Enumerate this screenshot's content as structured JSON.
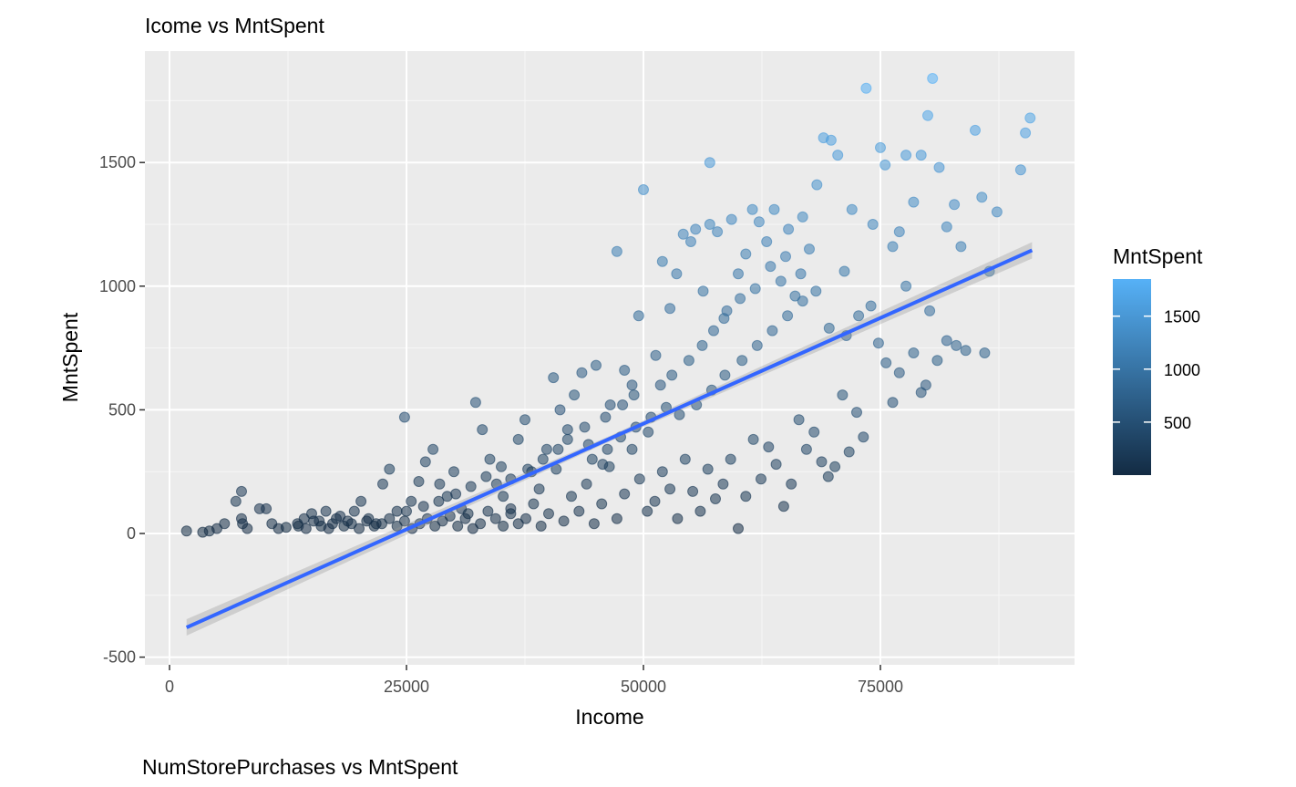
{
  "chart_data": {
    "type": "scatter",
    "title": "Icome vs MntSpent",
    "xlabel": "Income",
    "ylabel": "MntSpent",
    "xlim": [
      0,
      95000
    ],
    "ylim": [
      -520,
      1900
    ],
    "x_ticks": [
      0,
      25000,
      50000,
      75000
    ],
    "y_ticks": [
      -500,
      0,
      500,
      1000,
      1500
    ],
    "grid": true,
    "legend": {
      "title": "MntSpent",
      "position": "right",
      "type": "colorbar",
      "range": [
        0,
        1850
      ],
      "ticks": [
        500,
        1000,
        1500
      ],
      "colors": [
        "#132B43",
        "#56B1F7"
      ]
    },
    "trend_line": {
      "x": [
        1800,
        91000
      ],
      "y": [
        -380,
        1145
      ],
      "color": "#3366FF"
    },
    "point_color_low": "#132B43",
    "point_color_high": "#56B1F7",
    "points": [
      [
        1800,
        10
      ],
      [
        3500,
        5
      ],
      [
        4200,
        10
      ],
      [
        5000,
        20
      ],
      [
        5800,
        40
      ],
      [
        7000,
        130
      ],
      [
        7600,
        170
      ],
      [
        7600,
        60
      ],
      [
        7700,
        40
      ],
      [
        8200,
        20
      ],
      [
        9500,
        100
      ],
      [
        10200,
        100
      ],
      [
        10800,
        40
      ],
      [
        11500,
        20
      ],
      [
        12300,
        25
      ],
      [
        13500,
        40
      ],
      [
        14200,
        60
      ],
      [
        15000,
        80
      ],
      [
        15800,
        50
      ],
      [
        16500,
        90
      ],
      [
        17200,
        40
      ],
      [
        18000,
        70
      ],
      [
        18800,
        50
      ],
      [
        19500,
        90
      ],
      [
        20200,
        130
      ],
      [
        21000,
        60
      ],
      [
        21800,
        40
      ],
      [
        22500,
        200
      ],
      [
        23200,
        260
      ],
      [
        24000,
        90
      ],
      [
        24800,
        470
      ],
      [
        25500,
        130
      ],
      [
        26300,
        210
      ],
      [
        27000,
        290
      ],
      [
        27800,
        340
      ],
      [
        28500,
        200
      ],
      [
        29300,
        150
      ],
      [
        30000,
        250
      ],
      [
        30800,
        100
      ],
      [
        31500,
        80
      ],
      [
        32300,
        530
      ],
      [
        33000,
        420
      ],
      [
        33800,
        300
      ],
      [
        34500,
        200
      ],
      [
        35200,
        150
      ],
      [
        36000,
        100
      ],
      [
        36800,
        380
      ],
      [
        37500,
        460
      ],
      [
        38200,
        250
      ],
      [
        39000,
        180
      ],
      [
        39800,
        340
      ],
      [
        40500,
        630
      ],
      [
        41200,
        500
      ],
      [
        42000,
        420
      ],
      [
        42700,
        560
      ],
      [
        43500,
        650
      ],
      [
        44200,
        360
      ],
      [
        45000,
        680
      ],
      [
        45700,
        280
      ],
      [
        46500,
        520
      ],
      [
        47200,
        1140
      ],
      [
        48000,
        660
      ],
      [
        48800,
        600
      ],
      [
        49500,
        880
      ],
      [
        50000,
        1390
      ],
      [
        50500,
        410
      ],
      [
        51300,
        720
      ],
      [
        52000,
        1100
      ],
      [
        52800,
        910
      ],
      [
        53500,
        1050
      ],
      [
        54200,
        1210
      ],
      [
        55000,
        1180
      ],
      [
        55500,
        1230
      ],
      [
        56300,
        980
      ],
      [
        57000,
        1500
      ],
      [
        57000,
        1250
      ],
      [
        57800,
        1220
      ],
      [
        58500,
        870
      ],
      [
        59300,
        1270
      ],
      [
        60000,
        1050
      ],
      [
        60800,
        1130
      ],
      [
        61500,
        1310
      ],
      [
        62200,
        1260
      ],
      [
        63000,
        1180
      ],
      [
        63800,
        1310
      ],
      [
        64500,
        1020
      ],
      [
        65300,
        1230
      ],
      [
        66000,
        960
      ],
      [
        66800,
        1280
      ],
      [
        67500,
        1150
      ],
      [
        68300,
        1410
      ],
      [
        69000,
        1600
      ],
      [
        69800,
        1590
      ],
      [
        70500,
        1530
      ],
      [
        71200,
        1060
      ],
      [
        72000,
        1310
      ],
      [
        72700,
        880
      ],
      [
        73500,
        1800
      ],
      [
        74200,
        1250
      ],
      [
        75000,
        1560
      ],
      [
        75500,
        1490
      ],
      [
        76300,
        1160
      ],
      [
        77000,
        1220
      ],
      [
        77700,
        1530
      ],
      [
        78500,
        1340
      ],
      [
        79300,
        1530
      ],
      [
        80000,
        1690
      ],
      [
        80500,
        1840
      ],
      [
        81200,
        1480
      ],
      [
        82000,
        1240
      ],
      [
        82800,
        1330
      ],
      [
        83500,
        1160
      ],
      [
        85000,
        1630
      ],
      [
        85700,
        1360
      ],
      [
        86500,
        1060
      ],
      [
        87300,
        1300
      ],
      [
        89800,
        1470
      ],
      [
        90300,
        1620
      ],
      [
        90800,
        1680
      ],
      [
        86000,
        730
      ],
      [
        84000,
        740
      ],
      [
        83000,
        760
      ],
      [
        82000,
        780
      ],
      [
        81000,
        700
      ],
      [
        80200,
        900
      ],
      [
        79800,
        600
      ],
      [
        79300,
        570
      ],
      [
        78500,
        730
      ],
      [
        77700,
        1000
      ],
      [
        77000,
        650
      ],
      [
        76300,
        530
      ],
      [
        75600,
        690
      ],
      [
        74800,
        770
      ],
      [
        74000,
        920
      ],
      [
        73200,
        390
      ],
      [
        72500,
        490
      ],
      [
        71700,
        330
      ],
      [
        71000,
        560
      ],
      [
        70200,
        270
      ],
      [
        69500,
        230
      ],
      [
        68800,
        290
      ],
      [
        68000,
        410
      ],
      [
        67200,
        340
      ],
      [
        66400,
        460
      ],
      [
        65600,
        200
      ],
      [
        64800,
        110
      ],
      [
        64000,
        280
      ],
      [
        63200,
        350
      ],
      [
        62400,
        220
      ],
      [
        61600,
        380
      ],
      [
        60800,
        150
      ],
      [
        60000,
        20
      ],
      [
        59200,
        300
      ],
      [
        58400,
        200
      ],
      [
        57600,
        140
      ],
      [
        56800,
        260
      ],
      [
        56000,
        90
      ],
      [
        55200,
        170
      ],
      [
        54400,
        300
      ],
      [
        53600,
        60
      ],
      [
        52800,
        180
      ],
      [
        52000,
        250
      ],
      [
        51200,
        130
      ],
      [
        50400,
        90
      ],
      [
        49600,
        220
      ],
      [
        48800,
        340
      ],
      [
        48000,
        160
      ],
      [
        47200,
        60
      ],
      [
        46400,
        270
      ],
      [
        45600,
        120
      ],
      [
        44800,
        40
      ],
      [
        44000,
        200
      ],
      [
        43200,
        90
      ],
      [
        42400,
        150
      ],
      [
        41600,
        50
      ],
      [
        40800,
        260
      ],
      [
        40000,
        80
      ],
      [
        39200,
        30
      ],
      [
        38400,
        120
      ],
      [
        37600,
        60
      ],
      [
        36800,
        40
      ],
      [
        36000,
        80
      ],
      [
        35200,
        30
      ],
      [
        34400,
        60
      ],
      [
        33600,
        90
      ],
      [
        32800,
        40
      ],
      [
        32000,
        20
      ],
      [
        31200,
        60
      ],
      [
        30400,
        30
      ],
      [
        29600,
        70
      ],
      [
        28800,
        50
      ],
      [
        28000,
        30
      ],
      [
        27200,
        60
      ],
      [
        26400,
        40
      ],
      [
        25600,
        20
      ],
      [
        24800,
        50
      ],
      [
        24000,
        30
      ],
      [
        23200,
        60
      ],
      [
        22400,
        40
      ],
      [
        21600,
        30
      ],
      [
        20800,
        50
      ],
      [
        20000,
        20
      ],
      [
        19200,
        40
      ],
      [
        18400,
        30
      ],
      [
        17600,
        60
      ],
      [
        16800,
        20
      ],
      [
        16000,
        30
      ],
      [
        15200,
        50
      ],
      [
        14400,
        20
      ],
      [
        13600,
        30
      ],
      [
        42000,
        380
      ],
      [
        43800,
        430
      ],
      [
        46000,
        470
      ],
      [
        47800,
        520
      ],
      [
        49000,
        560
      ],
      [
        51800,
        600
      ],
      [
        53000,
        640
      ],
      [
        54800,
        700
      ],
      [
        56200,
        760
      ],
      [
        57400,
        820
      ],
      [
        58800,
        900
      ],
      [
        60200,
        950
      ],
      [
        61800,
        990
      ],
      [
        63400,
        1080
      ],
      [
        65000,
        1120
      ],
      [
        66600,
        1050
      ],
      [
        68200,
        980
      ],
      [
        69600,
        830
      ],
      [
        71400,
        800
      ],
      [
        53800,
        480
      ],
      [
        55600,
        520
      ],
      [
        57200,
        580
      ],
      [
        58600,
        640
      ],
      [
        60400,
        700
      ],
      [
        62000,
        760
      ],
      [
        63600,
        820
      ],
      [
        65200,
        880
      ],
      [
        66800,
        940
      ],
      [
        44600,
        300
      ],
      [
        46200,
        340
      ],
      [
        47600,
        390
      ],
      [
        49200,
        430
      ],
      [
        50800,
        470
      ],
      [
        52400,
        510
      ],
      [
        36000,
        220
      ],
      [
        37800,
        260
      ],
      [
        39400,
        300
      ],
      [
        41000,
        340
      ],
      [
        30200,
        160
      ],
      [
        31800,
        190
      ],
      [
        33400,
        230
      ],
      [
        35000,
        270
      ],
      [
        26800,
        110
      ],
      [
        28400,
        130
      ],
      [
        25000,
        90
      ]
    ]
  }
}
